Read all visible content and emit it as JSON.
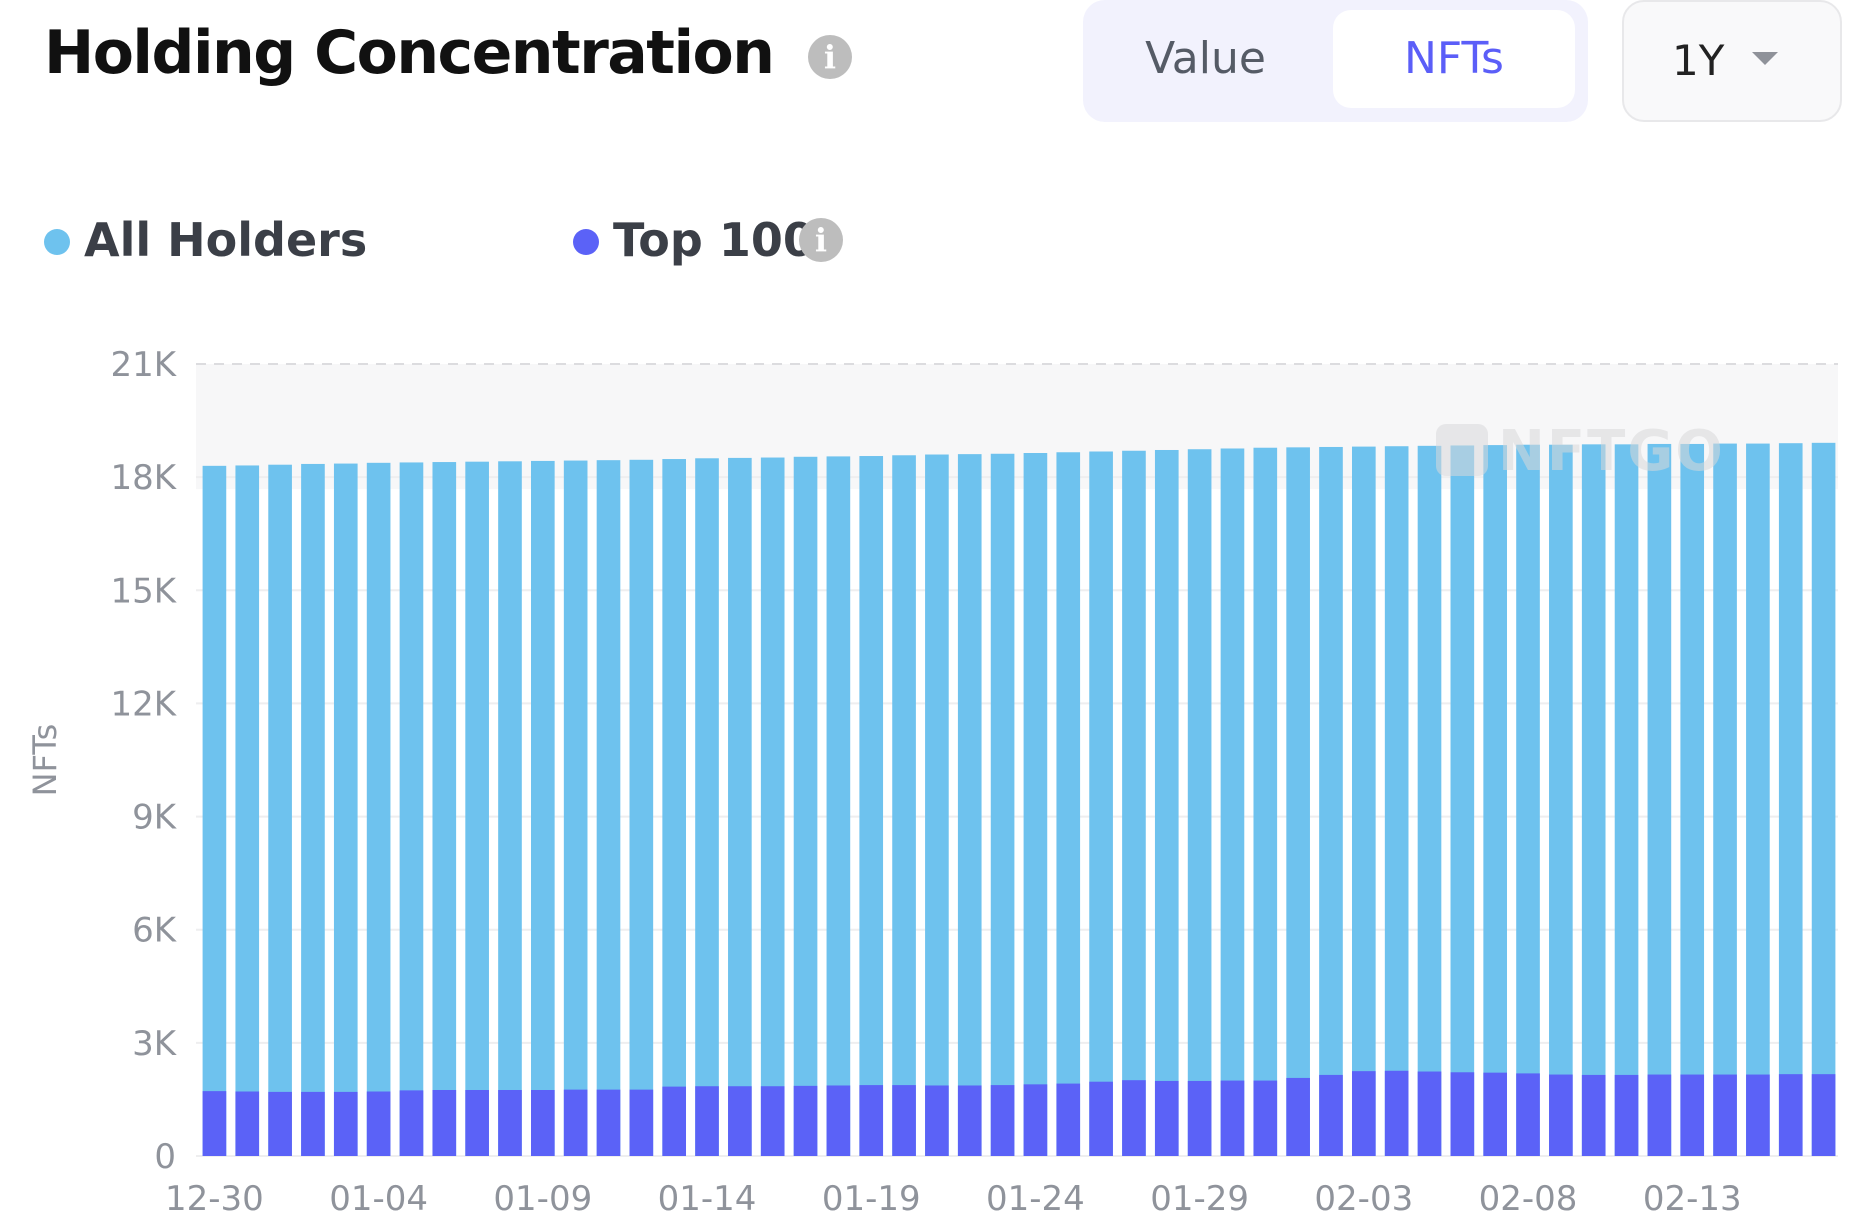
{
  "header": {
    "title": "Holding Concentration",
    "title_info_icon": "info-icon"
  },
  "toggle": {
    "options": [
      "Value",
      "NFTs"
    ],
    "selected": "NFTs"
  },
  "range_select": {
    "value": "1Y",
    "icon": "chevron-down-icon"
  },
  "legend": {
    "items": [
      {
        "label": "All Holders",
        "color": "#6ec2ee"
      },
      {
        "label": "Top 100",
        "color": "#5b62f7",
        "info_icon": "info-icon"
      }
    ]
  },
  "watermark": "NFTGO",
  "chart_data": {
    "type": "bar",
    "stacked": true,
    "ylabel": "NFTs",
    "ylim": [
      0,
      21000
    ],
    "y_ticks": [
      "0",
      "3K",
      "6K",
      "9K",
      "12K",
      "15K",
      "18K",
      "21K"
    ],
    "y_tick_values": [
      0,
      3000,
      6000,
      9000,
      12000,
      15000,
      18000,
      21000
    ],
    "x_tick_labels": [
      "12-30",
      "01-04",
      "01-09",
      "01-14",
      "01-19",
      "01-24",
      "01-29",
      "02-03",
      "02-08",
      "02-13"
    ],
    "categories": [
      "12-30",
      "12-31",
      "01-01",
      "01-02",
      "01-03",
      "01-04",
      "01-05",
      "01-06",
      "01-07",
      "01-08",
      "01-09",
      "01-10",
      "01-11",
      "01-12",
      "01-13",
      "01-14",
      "01-15",
      "01-16",
      "01-17",
      "01-18",
      "01-19",
      "01-20",
      "01-21",
      "01-22",
      "01-23",
      "01-24",
      "01-25",
      "01-26",
      "01-27",
      "01-28",
      "01-29",
      "01-30",
      "01-31",
      "02-01",
      "02-02",
      "02-03",
      "02-04",
      "02-05",
      "02-06",
      "02-07",
      "02-08",
      "02-09",
      "02-10",
      "02-11",
      "02-12",
      "02-13",
      "02-14",
      "02-15",
      "02-16",
      "02-17"
    ],
    "grid": true,
    "legend_position": "top-left",
    "series": [
      {
        "name": "All Holders",
        "color": "#6ec2ee",
        "values": [
          18300,
          18310,
          18330,
          18350,
          18360,
          18380,
          18390,
          18400,
          18410,
          18420,
          18430,
          18440,
          18450,
          18460,
          18480,
          18500,
          18510,
          18520,
          18540,
          18550,
          18560,
          18580,
          18600,
          18610,
          18620,
          18640,
          18660,
          18680,
          18700,
          18720,
          18740,
          18760,
          18780,
          18790,
          18800,
          18810,
          18820,
          18830,
          18840,
          18850,
          18860,
          18860,
          18870,
          18870,
          18880,
          18880,
          18890,
          18890,
          18900,
          18910
        ]
      },
      {
        "name": "Top 100",
        "color": "#5b62f7",
        "values": [
          1720,
          1710,
          1700,
          1700,
          1700,
          1710,
          1740,
          1750,
          1750,
          1750,
          1750,
          1760,
          1760,
          1760,
          1840,
          1850,
          1850,
          1850,
          1860,
          1870,
          1880,
          1880,
          1870,
          1870,
          1880,
          1900,
          1920,
          1970,
          2010,
          1990,
          1990,
          2000,
          2000,
          2070,
          2150,
          2250,
          2260,
          2240,
          2220,
          2210,
          2190,
          2160,
          2150,
          2150,
          2160,
          2160,
          2160,
          2160,
          2170,
          2170
        ]
      }
    ]
  }
}
